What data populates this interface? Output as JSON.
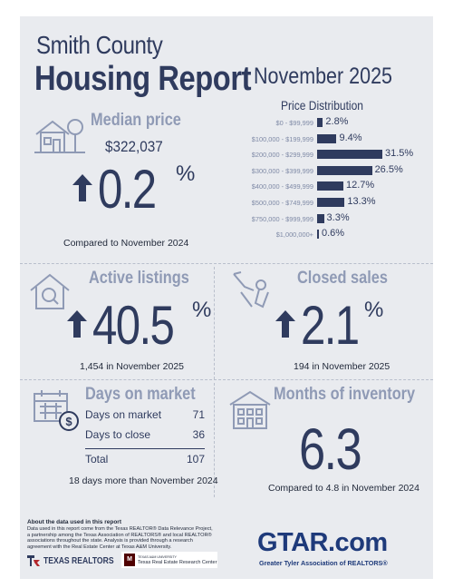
{
  "header": {
    "title_line1": "Smith County",
    "title_line2": "Housing Report",
    "month": "November 2025"
  },
  "median_price": {
    "title": "Median price",
    "value": "$322,037",
    "change": "0.2",
    "percent_sign": "%",
    "caption": "Compared to November 2024",
    "icon": "house-tree-icon"
  },
  "price_distribution": {
    "title": "Price Distribution",
    "rows": [
      {
        "label": "$0 - $99,999",
        "value": 2.8,
        "text": "2.8%"
      },
      {
        "label": "$100,000 - $199,999",
        "value": 9.4,
        "text": "9.4%"
      },
      {
        "label": "$200,000 - $299,999",
        "value": 31.5,
        "text": "31.5%"
      },
      {
        "label": "$300,000 - $399,999",
        "value": 26.5,
        "text": "26.5%"
      },
      {
        "label": "$400,000 - $499,999",
        "value": 12.7,
        "text": "12.7%"
      },
      {
        "label": "$500,000 - $749,999",
        "value": 13.3,
        "text": "13.3%"
      },
      {
        "label": "$750,000 - $999,999",
        "value": 3.3,
        "text": "3.3%"
      },
      {
        "label": "$1,000,000+",
        "value": 0.6,
        "text": "0.6%"
      }
    ]
  },
  "active_listings": {
    "title": "Active listings",
    "change": "40.5",
    "percent_sign": "%",
    "caption": "1,454 in November 2025",
    "icon": "house-magnifier-icon"
  },
  "closed_sales": {
    "title": "Closed sales",
    "change": "2.1",
    "percent_sign": "%",
    "caption": "194 in November 2025",
    "icon": "hand-keys-icon"
  },
  "days_on_market": {
    "title": "Days on market",
    "rows": [
      {
        "label": "Days on market",
        "value": "71"
      },
      {
        "label": "Days to close",
        "value": "36"
      },
      {
        "label": "Total",
        "value": "107"
      }
    ],
    "caption": "18 days more than November 2024",
    "icon": "calendar-dollar-icon"
  },
  "months_inventory": {
    "title": "Months of inventory",
    "value": "6.3",
    "caption": "Compared to 4.8 in November 2024",
    "icon": "building-icon"
  },
  "about": {
    "title": "About the data used in this report",
    "text": "Data used in this report come from the Texas REALTOR® Data Relevance Project, a partnership among the Texas Association of REALTORS® and local REALTOR® associations throughout the state. Analysis is provided through a research agreement with the Real Estate Center at Texas A&M University."
  },
  "footer": {
    "texas_realtors": "TEXAS REALTORS",
    "tamu_small": "TEXAS A&M UNIVERSITY",
    "tamu_center": "Texas Real Estate Research Center",
    "gtar_logo": "GTAR.com",
    "gtar_tagline": "Greater Tyler Association of REALTORS®"
  },
  "colors": {
    "navy": "#2f3b5e",
    "steel": "#8f9ab5",
    "background": "#e9ebef",
    "texas_red": "#b3262c",
    "tamu_maroon": "#500000"
  }
}
